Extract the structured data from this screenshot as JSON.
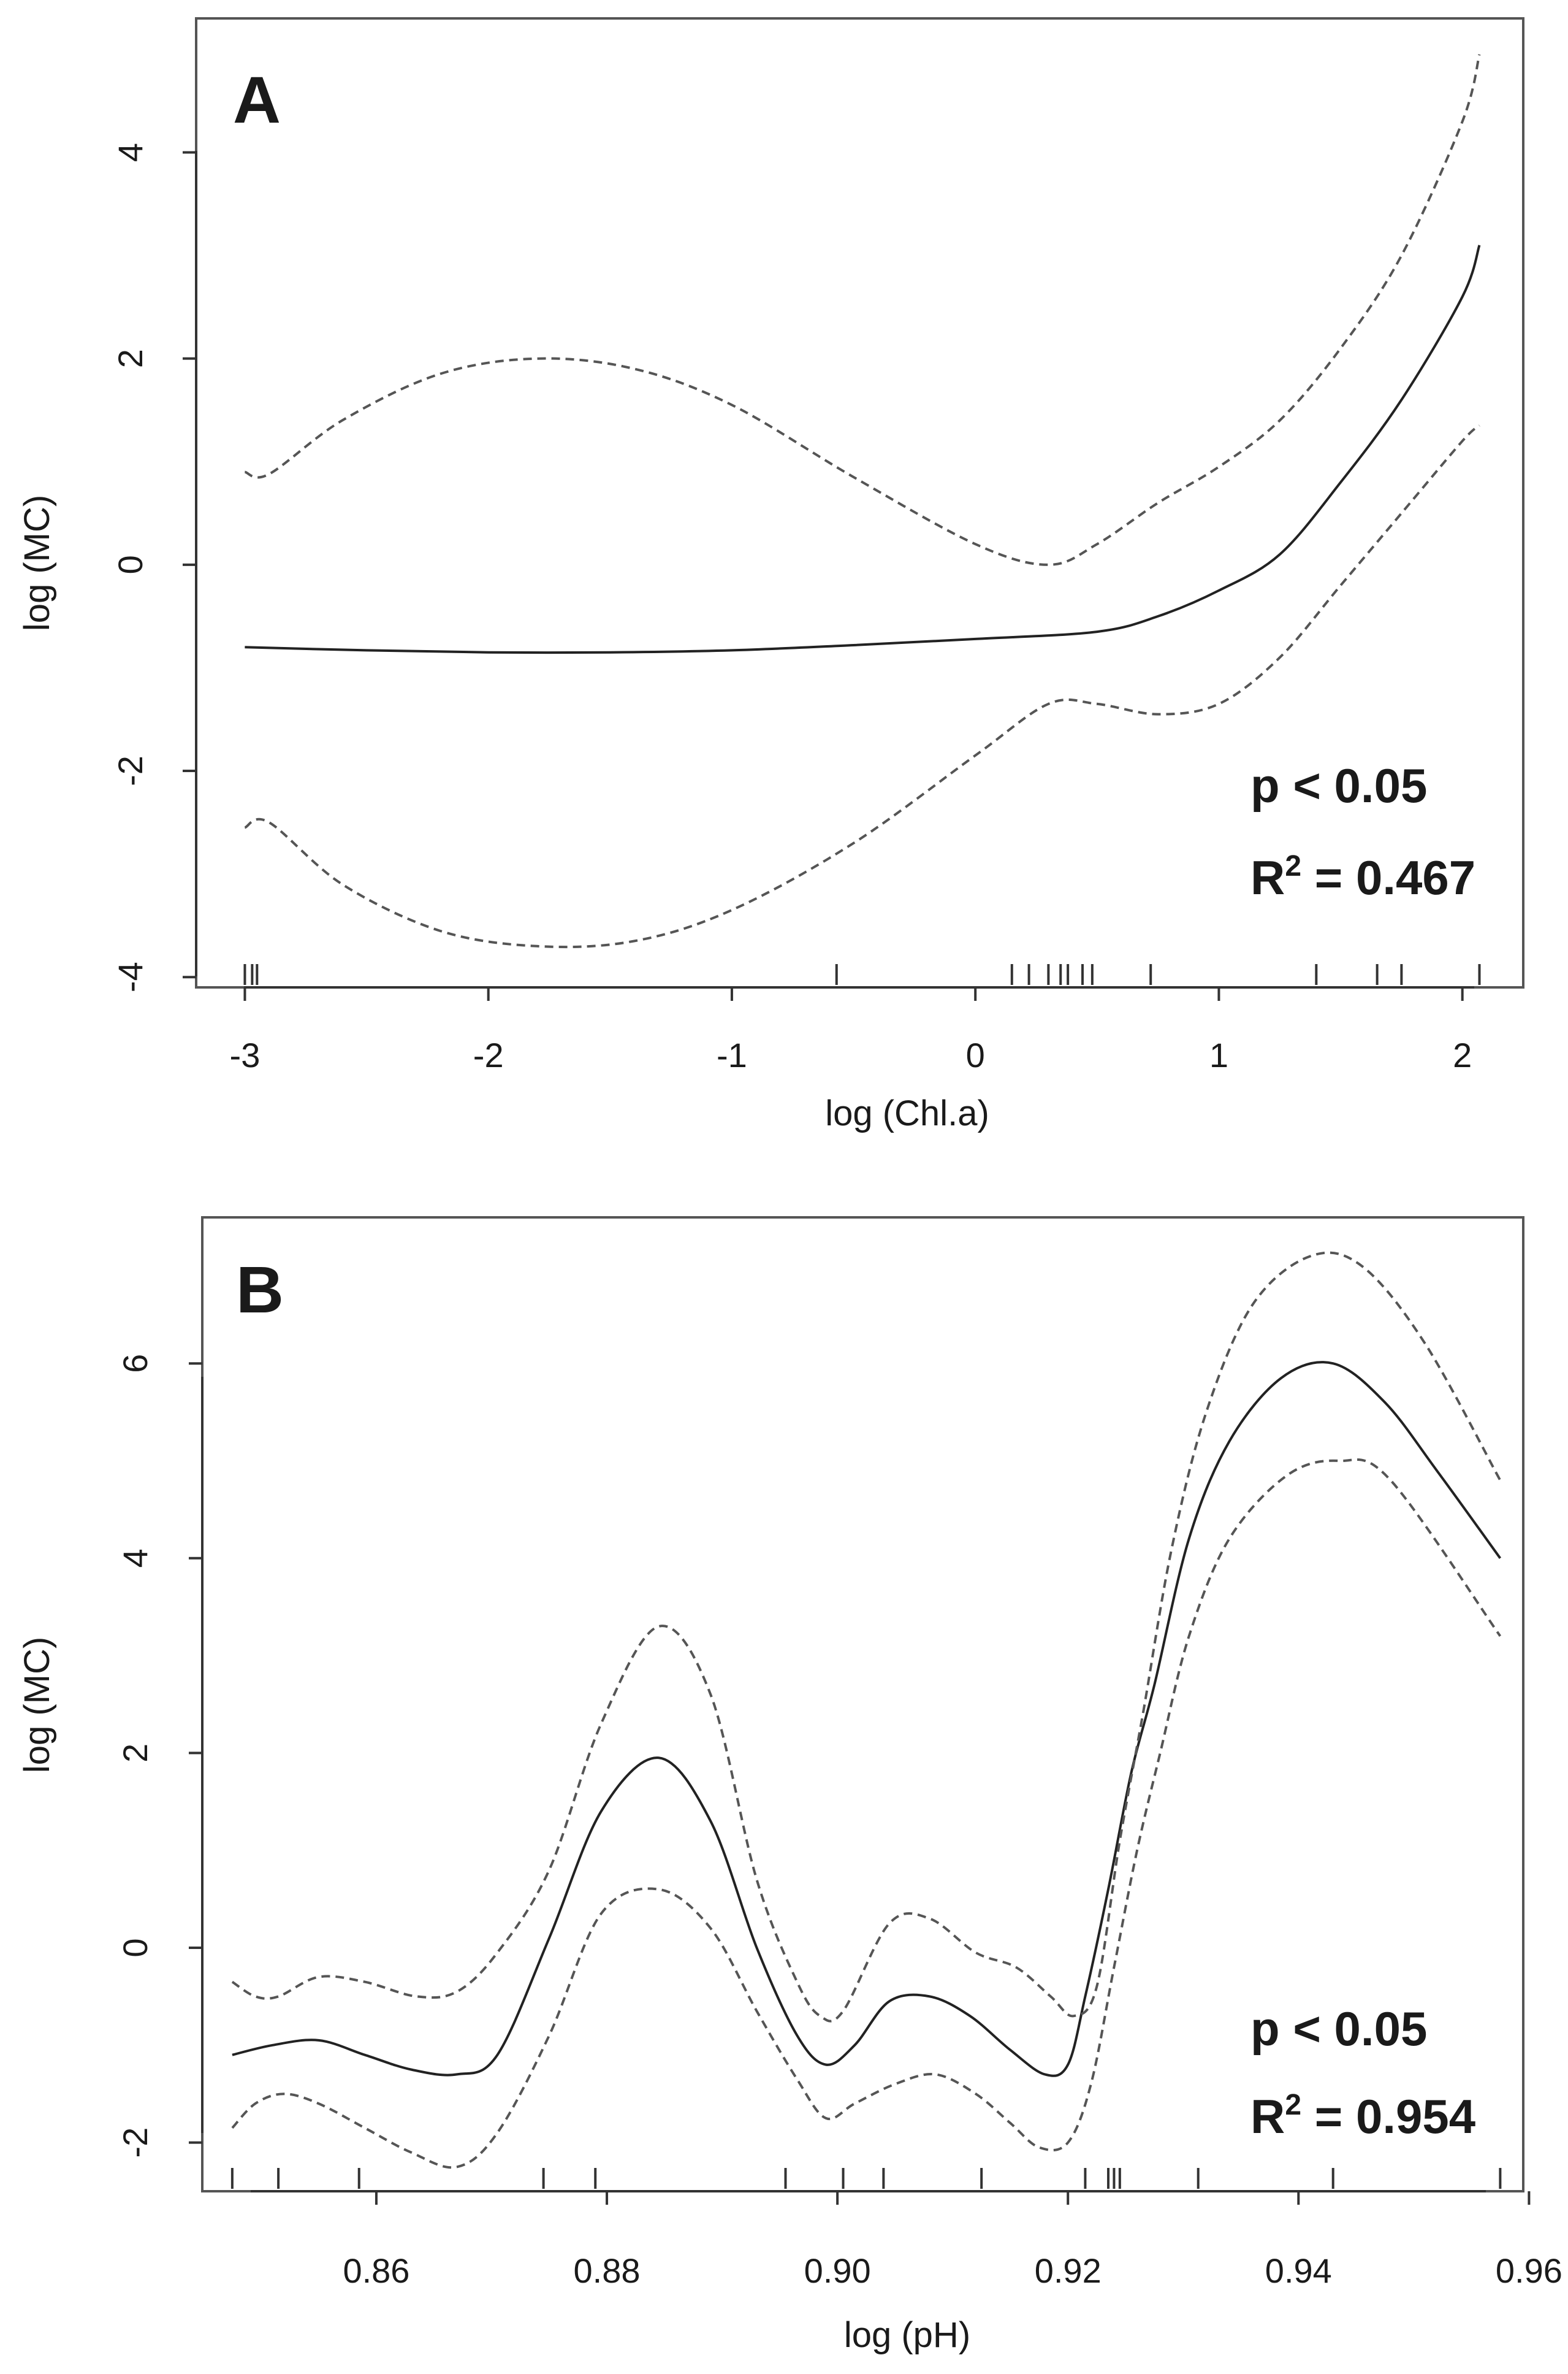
{
  "chart_data": [
    {
      "panel": "A",
      "type": "line",
      "xlabel": "log (Chl.a)",
      "ylabel": "log (MC)",
      "xlim": [
        -3.2,
        2.25
      ],
      "ylim": [
        -4.1,
        5.3
      ],
      "xticks": [
        -3,
        -2,
        -1,
        0,
        1,
        2
      ],
      "yticks": [
        -4,
        -2,
        0,
        2,
        4
      ],
      "xtick_labels": [
        "-3",
        "-2",
        "-1",
        "0",
        "1",
        "2"
      ],
      "ytick_labels": [
        "-4",
        "-2",
        "0",
        "2",
        "4"
      ],
      "annotations": {
        "p_value": "p < 0.05",
        "r2_label": "R",
        "r2_sup": "2",
        "r2_value": " = 0.467"
      },
      "rug": [
        -3.0,
        -2.97,
        -2.95,
        -0.57,
        0.15,
        0.22,
        0.3,
        0.35,
        0.38,
        0.44,
        0.48,
        0.72,
        1.4,
        1.65,
        1.75,
        2.07
      ],
      "series": [
        {
          "name": "fit",
          "style": "solid",
          "x": [
            -3.0,
            -2.5,
            -2.0,
            -1.5,
            -1.0,
            -0.5,
            0.0,
            0.5,
            0.75,
            1.0,
            1.25,
            1.5,
            1.75,
            2.0,
            2.07
          ],
          "y": [
            -0.8,
            -0.83,
            -0.85,
            -0.85,
            -0.83,
            -0.78,
            -0.72,
            -0.65,
            -0.5,
            -0.25,
            0.1,
            0.8,
            1.6,
            2.6,
            3.1
          ]
        },
        {
          "name": "upper CI",
          "style": "dashed",
          "x": [
            -3.0,
            -2.9,
            -2.6,
            -2.2,
            -1.8,
            -1.4,
            -1.0,
            -0.5,
            0.0,
            0.3,
            0.5,
            0.75,
            1.0,
            1.25,
            1.5,
            1.75,
            2.0,
            2.07
          ],
          "y": [
            0.9,
            0.88,
            1.4,
            1.85,
            2.0,
            1.9,
            1.55,
            0.85,
            0.2,
            0.0,
            0.2,
            0.6,
            0.95,
            1.4,
            2.1,
            3.0,
            4.3,
            4.95
          ]
        },
        {
          "name": "lower CI",
          "style": "dashed",
          "x": [
            -3.0,
            -2.9,
            -2.6,
            -2.2,
            -1.8,
            -1.4,
            -1.0,
            -0.5,
            0.0,
            0.3,
            0.5,
            0.75,
            1.0,
            1.25,
            1.5,
            1.75,
            2.0,
            2.07
          ],
          "y": [
            -2.55,
            -2.5,
            -3.1,
            -3.55,
            -3.7,
            -3.65,
            -3.35,
            -2.7,
            -1.85,
            -1.35,
            -1.35,
            -1.45,
            -1.35,
            -0.9,
            -0.2,
            0.5,
            1.2,
            1.35
          ]
        }
      ]
    },
    {
      "panel": "B",
      "type": "line",
      "xlabel": "log (pH)",
      "ylabel": "log (MC)",
      "xlim": [
        0.8449,
        0.9595
      ],
      "ylim": [
        -2.5,
        7.5
      ],
      "xticks": [
        0.86,
        0.88,
        0.9,
        0.92,
        0.94,
        0.96
      ],
      "yticks": [
        -2,
        0,
        2,
        4,
        6
      ],
      "xtick_labels": [
        "0.86",
        "0.88",
        "0.90",
        "0.92",
        "0.94",
        "0.96"
      ],
      "ytick_labels": [
        "-2",
        "0",
        "2",
        "4",
        "6"
      ],
      "annotations": {
        "p_value": "p < 0.05",
        "r2_label": "R",
        "r2_sup": "2",
        "r2_value": " = 0.954"
      },
      "rug": [
        0.8475,
        0.8515,
        0.8585,
        0.8745,
        0.879,
        0.8955,
        0.9005,
        0.904,
        0.9125,
        0.9215,
        0.9235,
        0.924,
        0.9245,
        0.9313,
        0.943,
        0.9575
      ],
      "series": [
        {
          "name": "fit",
          "style": "solid",
          "x": [
            0.8475,
            0.851,
            0.855,
            0.859,
            0.863,
            0.867,
            0.8705,
            0.875,
            0.8795,
            0.8845,
            0.889,
            0.893,
            0.8965,
            0.899,
            0.9015,
            0.9045,
            0.908,
            0.9115,
            0.915,
            0.918,
            0.92,
            0.9215,
            0.9235,
            0.9255,
            0.9275,
            0.9305,
            0.934,
            0.9385,
            0.943,
            0.9475,
            0.952,
            0.9575
          ],
          "y": [
            -1.1,
            -1.0,
            -0.95,
            -1.1,
            -1.25,
            -1.3,
            -1.1,
            0.1,
            1.4,
            1.95,
            1.3,
            0.0,
            -0.9,
            -1.2,
            -1.0,
            -0.55,
            -0.5,
            -0.7,
            -1.05,
            -1.3,
            -1.2,
            -0.5,
            0.6,
            1.8,
            2.7,
            4.2,
            5.2,
            5.85,
            6.0,
            5.6,
            4.9,
            4.0
          ]
        },
        {
          "name": "upper CI",
          "style": "dashed",
          "x": [
            0.8475,
            0.8495,
            0.8515,
            0.855,
            0.859,
            0.8635,
            0.867,
            0.8705,
            0.875,
            0.8795,
            0.8845,
            0.889,
            0.893,
            0.8965,
            0.8985,
            0.9005,
            0.9045,
            0.908,
            0.912,
            0.9155,
            0.9185,
            0.9205,
            0.9225,
            0.9245,
            0.9265,
            0.929,
            0.932,
            0.936,
            0.941,
            0.9455,
            0.951,
            0.9575
          ],
          "y": [
            -0.35,
            -0.5,
            -0.5,
            -0.3,
            -0.35,
            -0.5,
            -0.45,
            -0.05,
            0.8,
            2.3,
            3.3,
            2.6,
            0.7,
            -0.35,
            -0.7,
            -0.65,
            0.25,
            0.3,
            -0.05,
            -0.2,
            -0.5,
            -0.7,
            -0.4,
            1.1,
            2.4,
            4.1,
            5.5,
            6.6,
            7.1,
            7.0,
            6.2,
            4.8
          ]
        },
        {
          "name": "lower CI",
          "style": "dashed",
          "x": [
            0.8475,
            0.8495,
            0.852,
            0.855,
            0.859,
            0.863,
            0.867,
            0.8705,
            0.875,
            0.8795,
            0.8845,
            0.889,
            0.893,
            0.8965,
            0.899,
            0.9015,
            0.905,
            0.9085,
            0.912,
            0.915,
            0.9175,
            0.92,
            0.922,
            0.924,
            0.926,
            0.928,
            0.9305,
            0.934,
            0.939,
            0.9435,
            0.948,
            0.9575
          ],
          "y": [
            -1.85,
            -1.6,
            -1.5,
            -1.6,
            -1.85,
            -2.1,
            -2.25,
            -1.9,
            -0.9,
            0.35,
            0.6,
            0.2,
            -0.65,
            -1.35,
            -1.75,
            -1.6,
            -1.4,
            -1.3,
            -1.5,
            -1.8,
            -2.05,
            -2.0,
            -1.4,
            -0.2,
            1.0,
            2.0,
            3.2,
            4.2,
            4.85,
            5.0,
            4.8,
            3.2
          ]
        }
      ]
    }
  ]
}
